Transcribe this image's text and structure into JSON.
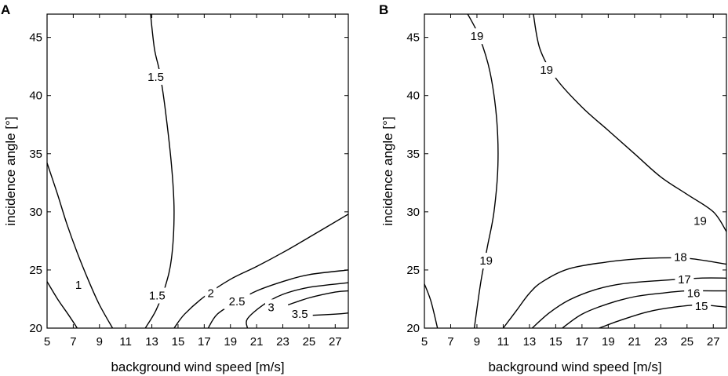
{
  "chart_data": [
    {
      "type": "contour",
      "panel": "A",
      "xlabel": "background wind speed [m/s]",
      "ylabel": "incidence angle [°]",
      "xlim": [
        5,
        28
      ],
      "ylim": [
        20,
        47
      ],
      "xticks": [
        5,
        7,
        9,
        11,
        13,
        15,
        17,
        19,
        21,
        23,
        25,
        27
      ],
      "yticks": [
        20,
        25,
        30,
        35,
        40,
        45
      ],
      "contours": [
        {
          "level": "1",
          "points": [
            [
              5,
              34.2
            ],
            [
              5.8,
              31.5
            ],
            [
              6.5,
              29
            ],
            [
              7.3,
              26.5
            ],
            [
              8.2,
              24
            ],
            [
              9,
              22
            ],
            [
              10,
              20
            ]
          ],
          "label_at": [
            7.4,
            23.7
          ]
        },
        {
          "level": "1",
          "points": [
            [
              5,
              24
            ],
            [
              5.8,
              22.5
            ],
            [
              6.6,
              21.2
            ],
            [
              7.3,
              20
            ]
          ],
          "label_at": null
        },
        {
          "level": "1.5",
          "points": [
            [
              12.9,
              47
            ],
            [
              13.2,
              44
            ],
            [
              13.6,
              42
            ],
            [
              14,
              39
            ],
            [
              14.5,
              34
            ],
            [
              14.7,
              30
            ],
            [
              14.5,
              26
            ],
            [
              14,
              23.5
            ],
            [
              13.3,
              21.5
            ],
            [
              12.5,
              20
            ]
          ],
          "label_at": [
            13.3,
            41.6
          ]
        },
        {
          "level": "1.5",
          "points": [],
          "label_at": [
            13.4,
            22.8
          ]
        },
        {
          "level": "2",
          "points": [
            [
              14.7,
              20
            ],
            [
              15.5,
              21.2
            ],
            [
              17,
              22.7
            ],
            [
              19,
              24.2
            ],
            [
              21,
              25.3
            ],
            [
              23,
              26.5
            ],
            [
              25,
              27.8
            ],
            [
              28,
              29.8
            ]
          ],
          "label_at": [
            17.5,
            23.0
          ]
        },
        {
          "level": "2.5",
          "points": [
            [
              17.3,
              20
            ],
            [
              18,
              21.2
            ],
            [
              19.5,
              22.3
            ],
            [
              21,
              23.2
            ],
            [
              23,
              24
            ],
            [
              25,
              24.6
            ],
            [
              28,
              25
            ]
          ],
          "label_at": [
            19.5,
            22.3
          ]
        },
        {
          "level": "3",
          "points": [
            [
              20.3,
              20
            ],
            [
              20.3,
              20.8
            ],
            [
              21.5,
              22
            ],
            [
              23,
              22.9
            ],
            [
              25,
              23.5
            ],
            [
              28,
              23.9
            ]
          ],
          "label_at": [
            22.1,
            21.8
          ]
        },
        {
          "level": "3.5",
          "points": [
            [
              23.4,
              22
            ],
            [
              25,
              22.6
            ],
            [
              27,
              23.1
            ],
            [
              28,
              23.2
            ]
          ],
          "label_at": [
            24.3,
            21.2
          ]
        },
        {
          "level": "3.5",
          "points": [
            [
              25.2,
              21.1
            ],
            [
              27,
              21.2
            ],
            [
              28,
              21.3
            ]
          ],
          "label_at": null
        }
      ]
    },
    {
      "type": "contour",
      "panel": "B",
      "xlabel": "background wind speed [m/s]",
      "ylabel": "incidence angle [°]",
      "xlim": [
        5,
        28
      ],
      "ylim": [
        20,
        47
      ],
      "xticks": [
        5,
        7,
        9,
        11,
        13,
        15,
        17,
        19,
        21,
        23,
        25,
        27
      ],
      "yticks": [
        20,
        25,
        30,
        35,
        40,
        45
      ],
      "contours": [
        {
          "level": "19",
          "points": [
            [
              8.3,
              47
            ],
            [
              9.2,
              45
            ],
            [
              10,
              42
            ],
            [
              10.5,
              38
            ],
            [
              10.6,
              34
            ],
            [
              10.3,
              30
            ],
            [
              9.8,
              27
            ],
            [
              9.3,
              24
            ],
            [
              8.8,
              20
            ]
          ],
          "label_at": [
            9.0,
            45.1
          ]
        },
        {
          "level": "19",
          "points": [],
          "label_at": [
            9.7,
            25.8
          ]
        },
        {
          "level": "19",
          "points": [
            [
              13.3,
              47
            ],
            [
              13.8,
              44
            ],
            [
              15,
              41.5
            ],
            [
              17,
              39
            ],
            [
              19,
              37
            ],
            [
              21,
              35
            ],
            [
              23,
              33
            ],
            [
              25,
              31.5
            ],
            [
              27,
              30
            ],
            [
              28,
              28.3
            ]
          ],
          "label_at": [
            14.3,
            42.2
          ]
        },
        {
          "level": "19",
          "points": [],
          "label_at": [
            26.0,
            29.2
          ]
        },
        {
          "level": "18",
          "points": [
            [
              11,
              20
            ],
            [
              12,
              21.5
            ],
            [
              13,
              23
            ],
            [
              14,
              24
            ],
            [
              16,
              25.1
            ],
            [
              19,
              25.7
            ],
            [
              22,
              26
            ],
            [
              25,
              26
            ],
            [
              28,
              25.5
            ]
          ],
          "label_at": [
            24.5,
            26.1
          ]
        },
        {
          "level": "17",
          "points": [
            [
              13.2,
              20
            ],
            [
              14.5,
              21.3
            ],
            [
              16,
              22.4
            ],
            [
              18,
              23.3
            ],
            [
              20,
              23.8
            ],
            [
              23,
              24.1
            ],
            [
              26,
              24.3
            ],
            [
              28,
              24.3
            ]
          ],
          "label_at": [
            24.8,
            24.2
          ]
        },
        {
          "level": "16",
          "points": [
            [
              15.5,
              20
            ],
            [
              17,
              21.2
            ],
            [
              19,
              22.1
            ],
            [
              21,
              22.7
            ],
            [
              23,
              23
            ],
            [
              25,
              23.2
            ],
            [
              28,
              23.2
            ]
          ],
          "label_at": [
            25.5,
            23.0
          ]
        },
        {
          "level": "15",
          "points": [
            [
              18.3,
              20
            ],
            [
              20,
              20.7
            ],
            [
              22,
              21.4
            ],
            [
              24,
              21.8
            ],
            [
              26,
              22
            ],
            [
              28,
              21.8
            ]
          ],
          "label_at": [
            26.1,
            21.9
          ]
        },
        {
          "level": "edge",
          "points": [
            [
              5,
              23.8
            ],
            [
              5.5,
              22.3
            ],
            [
              6,
              20
            ]
          ],
          "label_at": null
        }
      ]
    }
  ],
  "panel_letters": [
    "A",
    "B"
  ]
}
